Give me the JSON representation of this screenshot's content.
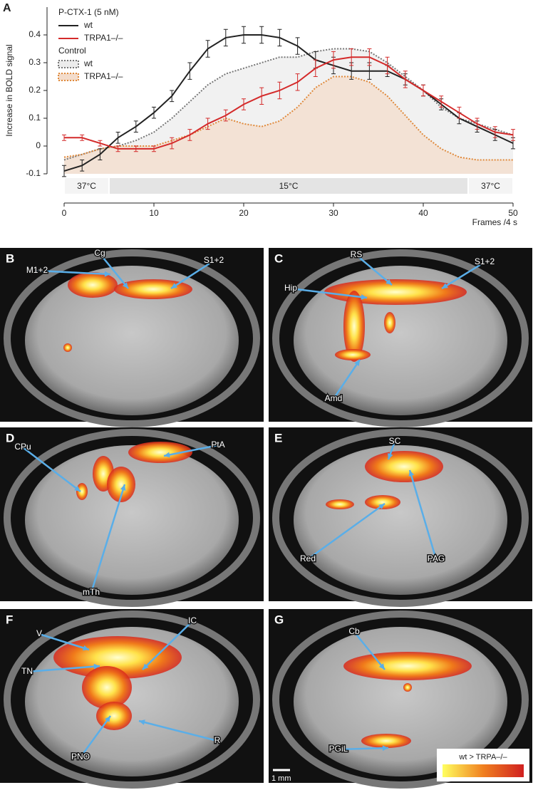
{
  "chart_data": {
    "type": "line",
    "panel": "A",
    "ylabel": "Increase in BOLD signal",
    "xlabel": "Frames /4 s",
    "legend_titles": [
      "P-CTX-1 (5 nM)",
      "Control"
    ],
    "x": [
      0,
      2,
      4,
      6,
      8,
      10,
      12,
      14,
      16,
      18,
      20,
      22,
      24,
      26,
      28,
      30,
      32,
      34,
      36,
      38,
      40,
      42,
      44,
      46,
      48,
      50
    ],
    "series": [
      {
        "name": "wt",
        "color": "#222222",
        "style": "solid",
        "values": [
          -0.09,
          -0.07,
          -0.03,
          0.03,
          0.07,
          0.12,
          0.18,
          0.27,
          0.35,
          0.39,
          0.4,
          0.4,
          0.39,
          0.36,
          0.31,
          0.29,
          0.27,
          0.27,
          0.27,
          0.24,
          0.2,
          0.15,
          0.1,
          0.07,
          0.04,
          0.01
        ],
        "errors": [
          0.02,
          0.02,
          0.02,
          0.02,
          0.02,
          0.02,
          0.02,
          0.03,
          0.03,
          0.03,
          0.03,
          0.03,
          0.03,
          0.03,
          0.03,
          0.03,
          0.03,
          0.03,
          0.02,
          0.02,
          0.02,
          0.02,
          0.02,
          0.02,
          0.02,
          0.02
        ]
      },
      {
        "name": "TRPA1–/–",
        "color": "#d42a2a",
        "style": "solid",
        "values": [
          0.03,
          0.03,
          0.01,
          -0.01,
          -0.01,
          -0.01,
          0.01,
          0.04,
          0.08,
          0.11,
          0.15,
          0.18,
          0.2,
          0.23,
          0.28,
          0.31,
          0.32,
          0.32,
          0.29,
          0.24,
          0.2,
          0.16,
          0.12,
          0.08,
          0.05,
          0.04
        ],
        "errors": [
          0.01,
          0.01,
          0.01,
          0.01,
          0.01,
          0.01,
          0.02,
          0.02,
          0.02,
          0.02,
          0.02,
          0.03,
          0.03,
          0.03,
          0.03,
          0.03,
          0.03,
          0.03,
          0.03,
          0.03,
          0.02,
          0.02,
          0.02,
          0.02,
          0.02,
          0.02
        ]
      },
      {
        "name": "wt",
        "color": "#777777",
        "style": "dotted",
        "fill": "#ececec",
        "values": [
          -0.05,
          -0.03,
          -0.01,
          0.0,
          0.02,
          0.05,
          0.1,
          0.16,
          0.22,
          0.26,
          0.28,
          0.3,
          0.32,
          0.32,
          0.34,
          0.35,
          0.35,
          0.34,
          0.3,
          0.25,
          0.2,
          0.14,
          0.1,
          0.08,
          0.06,
          0.04
        ]
      },
      {
        "name": "TRPA1–/–",
        "color": "#e08a3c",
        "style": "dotted",
        "fill": "#f3dccb",
        "values": [
          -0.04,
          -0.03,
          -0.01,
          0.0,
          0.0,
          0.0,
          0.02,
          0.04,
          0.07,
          0.1,
          0.08,
          0.07,
          0.09,
          0.14,
          0.21,
          0.25,
          0.25,
          0.23,
          0.18,
          0.11,
          0.04,
          -0.01,
          -0.04,
          -0.05,
          -0.05,
          -0.05
        ]
      }
    ],
    "stimulus": [
      {
        "label": "37°C",
        "start": 0,
        "end": 5
      },
      {
        "label": "15°C",
        "start": 5,
        "end": 45
      },
      {
        "label": "37°C",
        "start": 45,
        "end": 50
      }
    ],
    "xlim": [
      0,
      50
    ],
    "xticks": [
      0,
      10,
      20,
      30,
      40,
      50
    ],
    "ylim": [
      -0.1,
      0.5
    ],
    "yticks": [
      -0.1,
      0,
      0.1,
      0.2,
      0.3,
      0.4
    ]
  },
  "panels": [
    {
      "letter": "B",
      "labels": [
        "M1+2",
        "Cg",
        "S1+2"
      ]
    },
    {
      "letter": "C",
      "labels": [
        "RS",
        "S1+2",
        "Hip",
        "Amd"
      ]
    },
    {
      "letter": "D",
      "labels": [
        "PtA",
        "CPu",
        "mTh"
      ]
    },
    {
      "letter": "E",
      "labels": [
        "SC",
        "Red",
        "PAG"
      ]
    },
    {
      "letter": "F",
      "labels": [
        "V",
        "IC",
        "TN",
        "PNO",
        "R"
      ]
    },
    {
      "letter": "G",
      "labels": [
        "Cb",
        "PGiL"
      ]
    }
  ],
  "scale_bar": "1 mm",
  "colorbar_label": "wt > TRPA–/–"
}
